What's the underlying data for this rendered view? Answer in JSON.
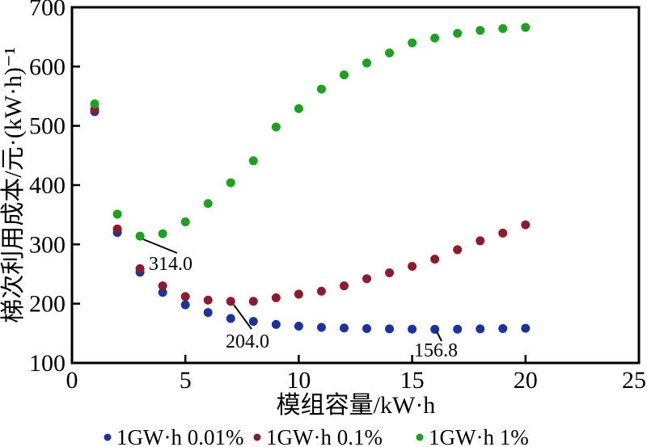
{
  "figure": {
    "background": "#ffffff",
    "frame_color": "#000000",
    "text_color": "#000000"
  },
  "chart_data": {
    "type": "scatter",
    "title": "",
    "xlabel": "模组容量/kW·h",
    "ylabel": "梯次利用成本/元·(kW·h)⁻¹",
    "xlim": [
      0,
      25
    ],
    "ylim": [
      100,
      700
    ],
    "x_ticks": [
      0,
      5,
      10,
      15,
      20,
      25
    ],
    "y_ticks": [
      100,
      200,
      300,
      400,
      500,
      600,
      700
    ],
    "grid": false,
    "legend_position": "bottom",
    "x": [
      1,
      2,
      3,
      4,
      5,
      6,
      7,
      8,
      9,
      10,
      11,
      12,
      13,
      14,
      15,
      16,
      17,
      18,
      19,
      20
    ],
    "series": [
      {
        "name": "1GW·h 0.01%",
        "color": "#1a339f",
        "values": [
          524,
          320,
          253,
          219,
          198,
          185,
          175,
          170,
          165,
          162,
          160,
          159,
          158,
          157.5,
          157,
          156.8,
          157,
          157.5,
          158,
          158.5
        ]
      },
      {
        "name": "1GW·h 0.1%",
        "color": "#8e1b2b",
        "values": [
          528,
          326,
          259,
          230,
          212,
          206,
          204,
          204,
          210,
          216,
          221,
          230,
          242,
          252,
          263,
          275,
          291,
          306,
          319,
          333
        ]
      },
      {
        "name": "1GW·h 1%",
        "color": "#1ca21c",
        "values": [
          537,
          351,
          314,
          318,
          338,
          369,
          404,
          441,
          498,
          529,
          562,
          586,
          606,
          623,
          640,
          648,
          656,
          661,
          664,
          666
        ]
      }
    ],
    "annotations": [
      {
        "text": "314.0",
        "series": "1GW·h 1%",
        "x": 3,
        "value": 314.0
      },
      {
        "text": "204.0",
        "series": "1GW·h 0.1%",
        "x": 7,
        "value": 204.0
      },
      {
        "text": "156.8",
        "series": "1GW·h 0.01%",
        "x": 16,
        "value": 156.8
      }
    ]
  }
}
